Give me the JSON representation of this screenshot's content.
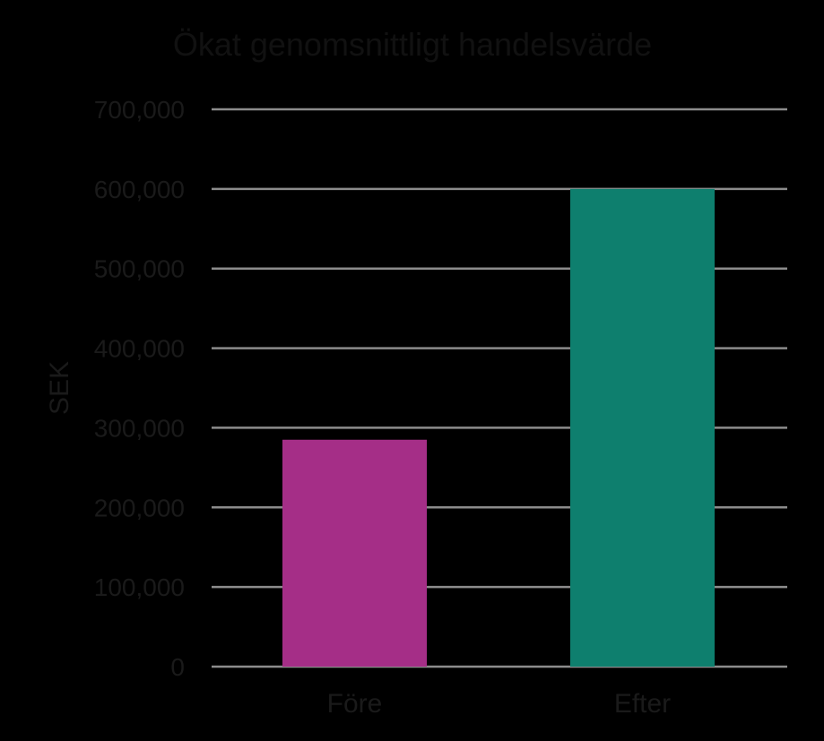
{
  "chart_data": {
    "type": "bar",
    "title": "Ökat genomsnittligt handelsvärde",
    "xlabel": "",
    "ylabel": "SEK",
    "categories": [
      "Före",
      "Efter"
    ],
    "values": [
      285000,
      600000
    ],
    "colors": [
      "#a52e87",
      "#0e7f6e"
    ],
    "ylim": [
      0,
      700000
    ],
    "yticks": [
      0,
      100000,
      200000,
      300000,
      400000,
      500000,
      600000,
      700000
    ],
    "ytick_labels": [
      "0",
      "100,000",
      "200,000",
      "300,000",
      "400,000",
      "500,000",
      "600,000",
      "700,000"
    ],
    "grid": true,
    "legend": "none"
  }
}
